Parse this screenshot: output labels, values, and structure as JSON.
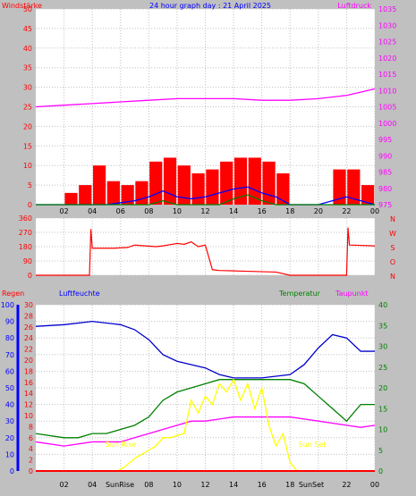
{
  "chart_data": [
    {
      "type": "line",
      "panel": "wind-pressure",
      "title": "24 hour graph day : 21 April 2025",
      "left_label": "Windstärke",
      "right_label": "Luftdruck",
      "x_ticks": [
        "02",
        "04",
        "06",
        "08",
        "10",
        "12",
        "14",
        "16",
        "18",
        "20",
        "22",
        "00"
      ],
      "left_ticks": [
        0,
        5,
        10,
        15,
        20,
        25,
        30,
        35,
        40,
        45,
        50
      ],
      "right_ticks": [
        975,
        980,
        985,
        990,
        995,
        1000,
        1005,
        1010,
        1015,
        1020,
        1025,
        1030,
        1035
      ],
      "ylim_left": [
        0,
        50
      ],
      "ylim_right": [
        975,
        1035
      ],
      "series": [
        {
          "color": "#ff00ff",
          "axis": "right",
          "x": [
            0,
            2,
            4,
            6,
            8,
            10,
            12,
            14,
            16,
            18,
            20,
            22,
            23,
            24
          ],
          "values": [
            1005,
            1005.5,
            1006,
            1006.5,
            1007,
            1007.5,
            1007.5,
            1007.5,
            1007,
            1007,
            1007.5,
            1008.5,
            1009.5,
            1010.5
          ]
        },
        {
          "color": "#ff0000",
          "axis": "left",
          "style": "gust-bars",
          "x": [
            1.5,
            2.5,
            3.5,
            4.5,
            5.5,
            6.5,
            7.5,
            8.5,
            9.5,
            10.5,
            11.5,
            12.5,
            13.5,
            14.5,
            15.5,
            16.5,
            17.5,
            18.5,
            19.5,
            20.5,
            21.5,
            22.5,
            23.5
          ],
          "values": [
            0,
            3,
            5,
            10,
            6,
            5,
            6,
            11,
            12,
            10,
            8,
            9,
            11,
            12,
            12,
            11,
            8,
            0,
            0,
            0,
            9,
            9,
            5
          ]
        },
        {
          "color": "#0000ff",
          "axis": "left",
          "x": [
            0,
            3,
            5,
            6,
            7,
            8,
            9,
            10,
            11,
            12,
            13,
            14,
            15,
            16,
            17,
            18,
            20,
            21,
            22,
            23,
            24
          ],
          "values": [
            0,
            0,
            0,
            0.5,
            1,
            2,
            3.5,
            2,
            1.5,
            2,
            3,
            4,
            4.5,
            3,
            2,
            0,
            0,
            1,
            2,
            1,
            0
          ]
        },
        {
          "color": "#008000",
          "axis": "left",
          "x": [
            0,
            8,
            9,
            10,
            13,
            14,
            15,
            16,
            17,
            18,
            24
          ],
          "values": [
            0,
            0,
            1,
            0,
            0,
            1.5,
            2.5,
            1,
            0,
            0,
            0
          ]
        }
      ]
    },
    {
      "type": "line",
      "panel": "wind-direction",
      "left_ticks": [
        0,
        90,
        180,
        270,
        360
      ],
      "right_labels": [
        "N",
        "W",
        "S",
        "O",
        "N"
      ],
      "ylim": [
        0,
        360
      ],
      "series": [
        {
          "color": "#ff0000",
          "x": [
            0,
            3.8,
            3.9,
            4.0,
            5.5,
            6.5,
            7,
            8.5,
            9,
            10,
            10.5,
            11,
            11.5,
            12,
            12.5,
            13,
            15,
            17,
            18,
            22,
            22.1,
            22.2,
            24
          ],
          "values": [
            0,
            0,
            290,
            170,
            170,
            175,
            190,
            180,
            185,
            200,
            195,
            210,
            180,
            190,
            35,
            30,
            25,
            20,
            0,
            0,
            300,
            190,
            185
          ]
        }
      ]
    },
    {
      "type": "line",
      "panel": "humidity-temperature",
      "labels": [
        "Regen",
        "Luftfeuchte",
        "Temperatur",
        "Taupunkt"
      ],
      "x_ticks": [
        "02",
        "04",
        "06",
        "08",
        "10",
        "12",
        "14",
        "16",
        "18",
        "20",
        "22",
        "00"
      ],
      "annotations": [
        "Sun Rise",
        "Sun Set",
        "SunRise",
        "SunSet"
      ],
      "humidity_ticks": [
        0,
        10,
        20,
        30,
        40,
        50,
        60,
        70,
        80,
        90,
        100
      ],
      "rain_ticks": [
        0,
        2,
        4,
        6,
        8,
        10,
        12,
        14,
        16,
        18,
        20,
        22,
        24,
        26,
        28,
        30
      ],
      "temp_ticks": [
        0,
        5,
        10,
        15,
        20,
        25,
        30,
        35,
        40
      ],
      "temp_lim": [
        0,
        40
      ],
      "rain_lim": [
        0,
        30
      ],
      "humidity_lim": [
        0,
        100
      ],
      "series": [
        {
          "color": "#0000cc",
          "axis": "humidity",
          "x": [
            0,
            2,
            4,
            6,
            7,
            8,
            9,
            10,
            11,
            12,
            13,
            14,
            15,
            16,
            17,
            18,
            19,
            20,
            21,
            22,
            23,
            24
          ],
          "values": [
            87,
            88,
            90,
            88,
            85,
            79,
            70,
            66,
            64,
            62,
            58,
            56,
            56,
            56,
            57,
            58,
            64,
            74,
            82,
            80,
            72,
            72
          ]
        },
        {
          "color": "#008000",
          "axis": "temp",
          "x": [
            0,
            2,
            3,
            4,
            5,
            6,
            7,
            8,
            9,
            10,
            11,
            12,
            13,
            14,
            15,
            16,
            17,
            18,
            19,
            20,
            21,
            22,
            23,
            24
          ],
          "values": [
            9,
            8,
            8,
            9,
            9,
            10,
            11,
            13,
            17,
            19,
            20,
            21,
            22,
            22,
            22,
            22,
            22,
            22,
            21,
            18,
            15,
            12,
            16,
            16
          ]
        },
        {
          "color": "#ff00ff",
          "axis": "temp",
          "x": [
            0,
            2,
            4,
            5,
            6,
            7,
            8,
            9,
            10,
            11,
            12,
            13,
            14,
            15,
            16,
            17,
            18,
            19,
            20,
            21,
            22,
            23,
            24
          ],
          "values": [
            7,
            6,
            7,
            7,
            7,
            8,
            9,
            10,
            11,
            12,
            12,
            12.5,
            13,
            13,
            13,
            13,
            13,
            12.5,
            12,
            11.5,
            11,
            10.5,
            11
          ]
        },
        {
          "color": "#ffff00",
          "axis": "temp",
          "x": [
            0,
            5,
            5.8,
            6.3,
            7,
            8,
            8.5,
            9,
            9.5,
            10.5,
            11,
            11.5,
            12,
            12.5,
            13,
            13.5,
            14,
            14.5,
            15,
            15.5,
            16,
            16.5,
            17,
            17.5,
            18,
            18.5,
            19,
            24
          ],
          "values": [
            0,
            0,
            0,
            1,
            3,
            5,
            6,
            8,
            8,
            9,
            17,
            14,
            18,
            16,
            21,
            19,
            22,
            17,
            21,
            15,
            20,
            11,
            6,
            9,
            2,
            0,
            0,
            0
          ]
        },
        {
          "color": "#ff0000",
          "axis": "rain",
          "x": [
            0,
            24
          ],
          "values": [
            0,
            0
          ]
        }
      ]
    }
  ]
}
